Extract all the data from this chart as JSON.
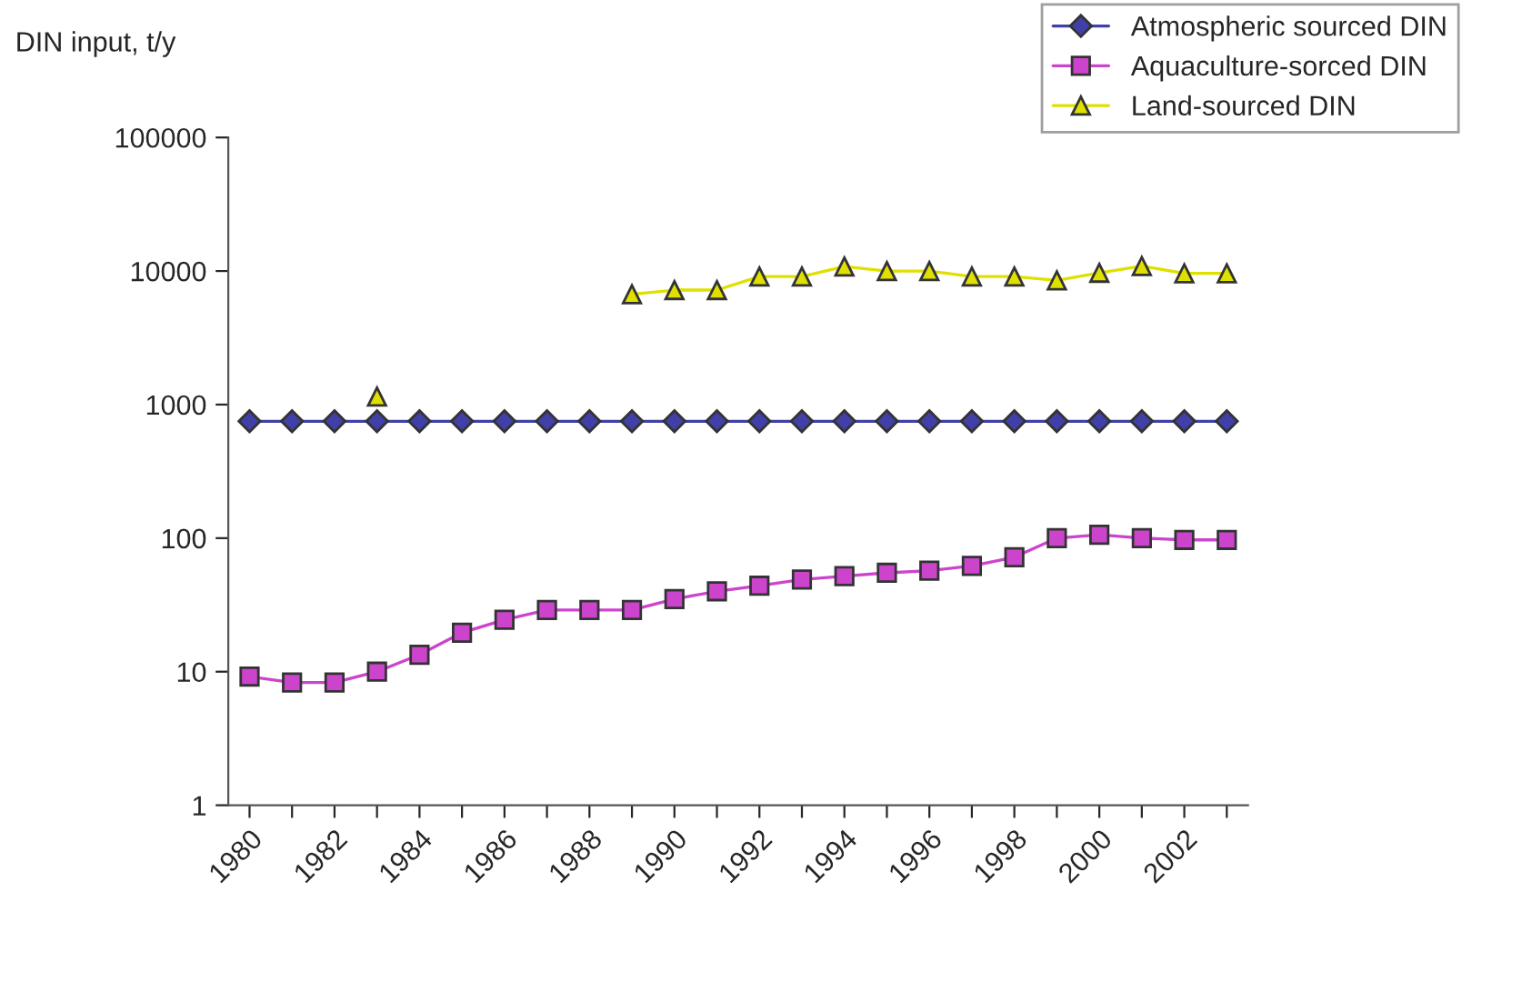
{
  "chart_data": {
    "type": "line",
    "ylabel": "DIN input, t/y",
    "categories": [
      "1980",
      null,
      "1982",
      null,
      "1984",
      null,
      "1986",
      null,
      "1988",
      null,
      "1990",
      null,
      "1992",
      null,
      "1994",
      null,
      "1996",
      null,
      "1998",
      null,
      "2000",
      null,
      "2002",
      null
    ],
    "series": [
      {
        "name": "Atmospheric sourced DIN",
        "color": "#4040a8",
        "marker": "diamond",
        "values": [
          750,
          750,
          750,
          750,
          750,
          750,
          750,
          750,
          750,
          750,
          750,
          750,
          750,
          750,
          750,
          750,
          750,
          750,
          750,
          750,
          750,
          750,
          750,
          750
        ]
      },
      {
        "name": "Aquaculture-sorced DIN",
        "color": "#cc44cc",
        "marker": "square",
        "values": [
          9.2,
          8.3,
          8.3,
          10,
          13.4,
          19.6,
          24.5,
          29,
          29,
          29,
          35,
          40,
          44,
          49,
          52,
          55,
          57,
          62,
          72,
          100,
          106,
          100,
          97,
          97
        ]
      },
      {
        "name": "Land-sourced DIN",
        "color": "#e0e000",
        "marker": "triangle",
        "values": [
          null,
          null,
          null,
          1150,
          null,
          null,
          null,
          null,
          null,
          6700,
          7200,
          7200,
          9100,
          9100,
          10800,
          10000,
          10000,
          9100,
          9100,
          8500,
          9700,
          10900,
          9600,
          9600
        ]
      }
    ],
    "log": "y",
    "ylim": [
      1,
      100000
    ],
    "yticks": [
      1,
      10,
      100,
      1000,
      10000,
      100000
    ],
    "grid": false,
    "legend": "top right"
  }
}
